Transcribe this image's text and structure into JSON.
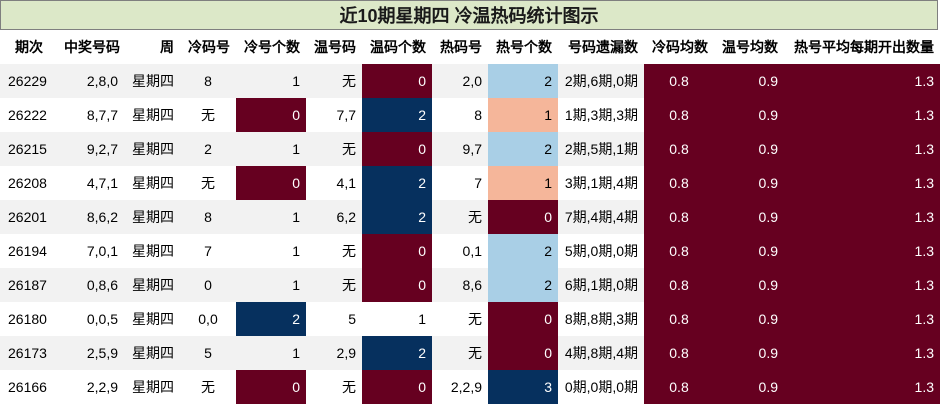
{
  "title": "近10期星期四 冷温热码统计图示",
  "columns": [
    "期次",
    "中奖号码",
    "周",
    "冷码号",
    "冷号个数",
    "温号码",
    "温码个数",
    "热码号",
    "热号个数",
    "号码遗漏数",
    "冷码均数",
    "温号均数",
    "热号平均每期开出数量"
  ],
  "colors": {
    "wine": "#660020",
    "navy": "#06305e",
    "light_blue": "#a9cfe6",
    "peach": "#f5b69a",
    "title_bg": "#dce8c8"
  },
  "rows": [
    {
      "cells": [
        "26229",
        "2,8,0",
        "星期四",
        "8",
        "1",
        "无",
        "0",
        "2,0",
        "2",
        "2期,6期,0期",
        "0.8",
        "0.9",
        "1.3"
      ]
    },
    {
      "cells": [
        "26222",
        "8,7,7",
        "星期四",
        "无",
        "0",
        "7,7",
        "2",
        "8",
        "1",
        "1期,3期,3期",
        "0.8",
        "0.9",
        "1.3"
      ]
    },
    {
      "cells": [
        "26215",
        "9,2,7",
        "星期四",
        "2",
        "1",
        "无",
        "0",
        "9,7",
        "2",
        "2期,5期,1期",
        "0.8",
        "0.9",
        "1.3"
      ]
    },
    {
      "cells": [
        "26208",
        "4,7,1",
        "星期四",
        "无",
        "0",
        "4,1",
        "2",
        "7",
        "1",
        "3期,1期,4期",
        "0.8",
        "0.9",
        "1.3"
      ]
    },
    {
      "cells": [
        "26201",
        "8,6,2",
        "星期四",
        "8",
        "1",
        "6,2",
        "2",
        "无",
        "0",
        "7期,4期,4期",
        "0.8",
        "0.9",
        "1.3"
      ]
    },
    {
      "cells": [
        "26194",
        "7,0,1",
        "星期四",
        "7",
        "1",
        "无",
        "0",
        "0,1",
        "2",
        "5期,0期,0期",
        "0.8",
        "0.9",
        "1.3"
      ]
    },
    {
      "cells": [
        "26187",
        "0,8,6",
        "星期四",
        "0",
        "1",
        "无",
        "0",
        "8,6",
        "2",
        "6期,1期,0期",
        "0.8",
        "0.9",
        "1.3"
      ]
    },
    {
      "cells": [
        "26180",
        "0,0,5",
        "星期四",
        "0,0",
        "2",
        "5",
        "1",
        "无",
        "0",
        "8期,8期,3期",
        "0.8",
        "0.9",
        "1.3"
      ]
    },
    {
      "cells": [
        "26173",
        "2,5,9",
        "星期四",
        "5",
        "1",
        "2,9",
        "2",
        "无",
        "0",
        "4期,8期,4期",
        "0.8",
        "0.9",
        "1.3"
      ]
    },
    {
      "cells": [
        "26166",
        "2,2,9",
        "星期四",
        "无",
        "0",
        "无",
        "0",
        "2,2,9",
        "3",
        "0期,0期,0期",
        "0.8",
        "0.9",
        "1.3"
      ]
    }
  ]
}
